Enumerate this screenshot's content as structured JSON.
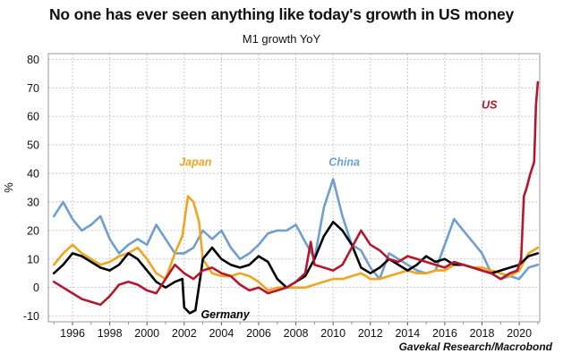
{
  "title": "No one has ever seen anything like today's growth in US money",
  "subtitle": "M1 growth YoY",
  "source": "Gavekal Research/Macrobond",
  "chart_data": {
    "type": "line",
    "title": "No one has ever seen anything like today's growth in US money",
    "subtitle": "M1 growth YoY",
    "ylabel": "%",
    "xlabel": "",
    "xlim": [
      1994.7,
      2021.1
    ],
    "ylim": [
      -12,
      82
    ],
    "yticks": [
      -10,
      0,
      10,
      20,
      30,
      40,
      50,
      60,
      70,
      80
    ],
    "xticks": [
      1996,
      1998,
      2000,
      2002,
      2004,
      2006,
      2008,
      2010,
      2012,
      2014,
      2016,
      2018,
      2020
    ],
    "grid": true,
    "legend": "inline labels",
    "series": [
      {
        "name": "US",
        "color": "#b5172c",
        "x": [
          1995.0,
          1995.5,
          1996.0,
          1996.5,
          1997.0,
          1997.5,
          1998.0,
          1998.5,
          1999.0,
          1999.5,
          2000.0,
          2000.5,
          2001.0,
          2001.5,
          2002.0,
          2002.5,
          2003.0,
          2003.5,
          2004.0,
          2004.5,
          2005.0,
          2005.5,
          2006.0,
          2006.5,
          2007.0,
          2007.5,
          2008.0,
          2008.5,
          2008.8,
          2009.0,
          2009.5,
          2010.0,
          2010.5,
          2011.0,
          2011.5,
          2012.0,
          2012.5,
          2013.0,
          2013.5,
          2014.0,
          2014.5,
          2015.0,
          2015.5,
          2016.0,
          2016.5,
          2017.0,
          2017.5,
          2018.0,
          2018.5,
          2019.0,
          2019.5,
          2019.9,
          2020.1,
          2020.25,
          2020.4,
          2020.6,
          2020.8,
          2020.9,
          2021.0
        ],
        "values": [
          2,
          0,
          -2,
          -4,
          -5,
          -6,
          -3,
          1,
          2,
          1,
          -1,
          -2,
          3,
          8,
          5,
          3,
          6,
          7,
          5,
          4,
          1,
          -1,
          0,
          -2,
          -1,
          0,
          2,
          5,
          16,
          8,
          7,
          6,
          8,
          14,
          20,
          15,
          13,
          10,
          9,
          11,
          10,
          9,
          8,
          7,
          9,
          8,
          7,
          6,
          5,
          3,
          5,
          6,
          10,
          32,
          35,
          40,
          44,
          64,
          72
        ]
      },
      {
        "name": "Japan",
        "color": "#f0a51e",
        "x": [
          1995.0,
          1995.5,
          1996.0,
          1996.5,
          1997.0,
          1997.5,
          1998.0,
          1998.5,
          1999.0,
          1999.5,
          2000.0,
          2000.5,
          2001.0,
          2001.5,
          2001.9,
          2002.2,
          2002.5,
          2002.8,
          2003.0,
          2003.5,
          2004.0,
          2004.5,
          2005.0,
          2005.5,
          2006.0,
          2006.5,
          2007.0,
          2007.5,
          2008.0,
          2008.5,
          2009.0,
          2009.5,
          2010.0,
          2010.5,
          2011.0,
          2011.5,
          2012.0,
          2012.5,
          2013.0,
          2013.5,
          2014.0,
          2014.5,
          2015.0,
          2015.5,
          2016.0,
          2016.5,
          2017.0,
          2017.5,
          2018.0,
          2018.5,
          2019.0,
          2019.5,
          2020.0,
          2020.5,
          2021.0
        ],
        "values": [
          8,
          12,
          15,
          12,
          10,
          8,
          9,
          11,
          12,
          14,
          10,
          5,
          3,
          12,
          18,
          32,
          30,
          23,
          10,
          5,
          4,
          4,
          5,
          4,
          2,
          -1,
          0,
          0,
          0,
          0,
          1,
          2,
          3,
          3,
          4,
          5,
          3,
          3,
          4,
          5,
          6,
          5,
          5,
          6,
          6,
          8,
          8,
          7,
          7,
          6,
          5,
          4,
          6,
          12,
          14
        ]
      },
      {
        "name": "China",
        "color": "#6e9fcf",
        "x": [
          1995.0,
          1995.5,
          1996.0,
          1996.5,
          1997.0,
          1997.5,
          1998.0,
          1998.5,
          1999.0,
          1999.5,
          2000.0,
          2000.5,
          2001.0,
          2001.5,
          2002.0,
          2002.5,
          2003.0,
          2003.5,
          2004.0,
          2004.5,
          2005.0,
          2005.5,
          2006.0,
          2006.5,
          2007.0,
          2007.5,
          2008.0,
          2008.5,
          2009.0,
          2009.5,
          2010.0,
          2010.5,
          2011.0,
          2011.5,
          2012.0,
          2012.5,
          2013.0,
          2013.5,
          2014.0,
          2014.5,
          2015.0,
          2015.5,
          2016.0,
          2016.5,
          2017.0,
          2017.5,
          2018.0,
          2018.5,
          2019.0,
          2019.5,
          2020.0,
          2020.5,
          2021.0
        ],
        "values": [
          25,
          30,
          24,
          20,
          22,
          25,
          17,
          12,
          15,
          17,
          15,
          22,
          17,
          12,
          12,
          14,
          20,
          17,
          20,
          14,
          10,
          12,
          15,
          19,
          20,
          20,
          22,
          16,
          10,
          28,
          38,
          25,
          15,
          13,
          7,
          3,
          12,
          10,
          8,
          6,
          5,
          6,
          15,
          24,
          20,
          16,
          12,
          5,
          3,
          4,
          3,
          7,
          8
        ]
      },
      {
        "name": "Germany",
        "color": "#000000",
        "x": [
          1995.0,
          1995.5,
          1996.0,
          1996.5,
          1997.0,
          1997.5,
          1998.0,
          1998.5,
          1999.0,
          1999.5,
          2000.0,
          2000.5,
          2001.0,
          2001.5,
          2001.9,
          2002.0,
          2002.3,
          2002.6,
          2002.9,
          2003.0,
          2003.5,
          2004.0,
          2004.5,
          2005.0,
          2005.5,
          2006.0,
          2006.5,
          2007.0,
          2007.5,
          2008.0,
          2008.5,
          2009.0,
          2009.5,
          2010.0,
          2010.5,
          2011.0,
          2011.5,
          2012.0,
          2012.5,
          2013.0,
          2013.5,
          2014.0,
          2014.5,
          2015.0,
          2015.5,
          2016.0,
          2016.5,
          2017.0,
          2017.5,
          2018.0,
          2018.5,
          2019.0,
          2019.5,
          2020.0,
          2020.5,
          2021.0
        ],
        "values": [
          5,
          8,
          12,
          11,
          9,
          7,
          6,
          8,
          12,
          10,
          6,
          2,
          0,
          2,
          3,
          -7,
          -9,
          -8,
          5,
          10,
          14,
          10,
          8,
          7,
          8,
          11,
          9,
          3,
          0,
          2,
          4,
          10,
          18,
          23,
          20,
          15,
          7,
          5,
          7,
          10,
          8,
          6,
          8,
          11,
          9,
          10,
          8,
          8,
          7,
          6,
          5,
          6,
          7,
          8,
          11,
          12
        ]
      }
    ],
    "annotations": [
      {
        "text": "Japan",
        "color": "#f0a51e"
      },
      {
        "text": "China",
        "color": "#6e9fcf"
      },
      {
        "text": "US",
        "color": "#b5172c"
      },
      {
        "text": "Germany",
        "color": "#000000"
      }
    ]
  }
}
